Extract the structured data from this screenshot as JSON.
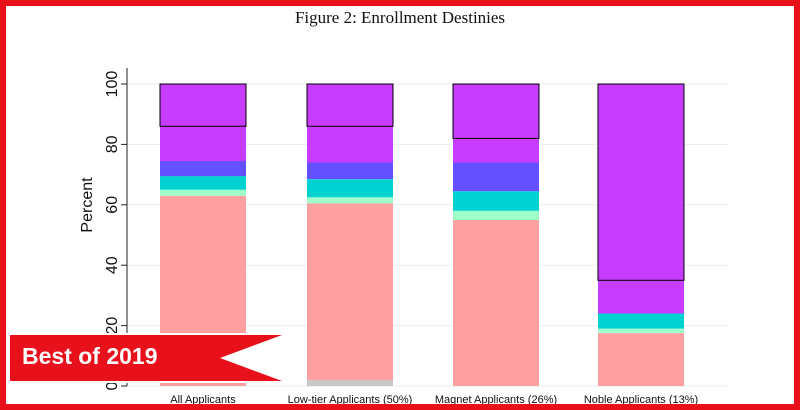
{
  "figure_title": "Figure 2: Enrollment Destinies",
  "badge": {
    "text": "Best of 2019"
  },
  "colors": {
    "frame": "#e8111b",
    "banner": "#e8111b"
  },
  "chart_data": {
    "type": "bar",
    "stacked": true,
    "title": "Figure 2: Enrollment Destinies",
    "ylabel": "Percent",
    "xlabel": "",
    "ylim": [
      0,
      100
    ],
    "yticks": [
      0,
      20,
      40,
      60,
      80,
      100
    ],
    "grid": true,
    "categories": [
      "All Applicants",
      "Low-tier Applicants (50%)",
      "Magnet Applicants (26%)",
      "Noble Applicants (13%)"
    ],
    "series": [
      {
        "color": "#c8c8c8",
        "values": [
          0,
          2,
          0,
          0
        ]
      },
      {
        "color": "#ffa0a0",
        "values": [
          63,
          58.5,
          55,
          17.5
        ]
      },
      {
        "color": "#9effc8",
        "values": [
          2,
          2,
          3,
          1.5
        ]
      },
      {
        "color": "#00d2d2",
        "values": [
          4.5,
          6,
          6.5,
          5
        ]
      },
      {
        "color": "#6450ff",
        "values": [
          5,
          5.5,
          9.5,
          0
        ]
      },
      {
        "color": "#c83cff",
        "values": [
          25.5,
          26,
          26,
          76
        ]
      }
    ],
    "outlined_top_segments": [
      14,
      14,
      18,
      65
    ]
  }
}
